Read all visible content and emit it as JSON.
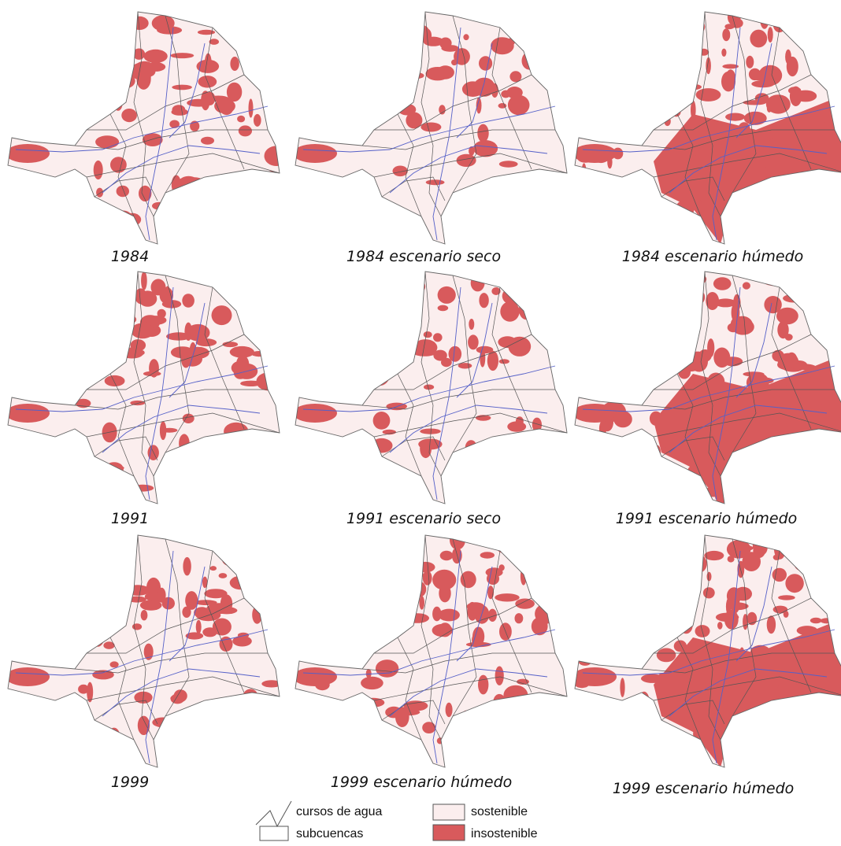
{
  "panels": [
    {
      "caption": "1984"
    },
    {
      "caption": "1984 escenario seco"
    },
    {
      "caption": "1984 escenario húmedo"
    },
    {
      "caption": "1991"
    },
    {
      "caption": "1991 escenario seco"
    },
    {
      "caption": "1991 escenario húmedo"
    },
    {
      "caption": "1999"
    },
    {
      "caption": "1999 escenario húmedo"
    },
    {
      "caption": "1999 escenario húmedo"
    }
  ],
  "legend": {
    "items": [
      {
        "label": "cursos de agua"
      },
      {
        "label": "subcuencas"
      },
      {
        "label": "sostenible"
      },
      {
        "label": "insostenible"
      }
    ]
  }
}
